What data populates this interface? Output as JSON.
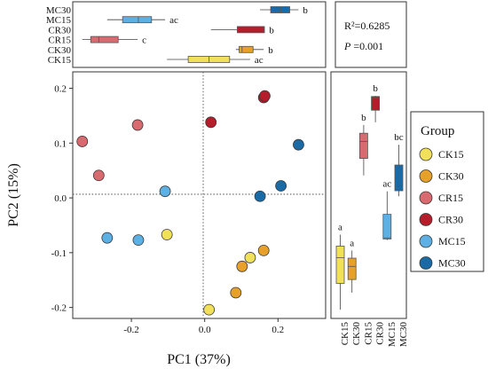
{
  "colors": {
    "CK15": "#f1e05a",
    "CK30": "#e7a02a",
    "CR15": "#d96a6f",
    "CR30": "#b51d2a",
    "MC15": "#5cb0e4",
    "MC30": "#1a6aa6"
  },
  "chart_data": [
    {
      "type": "scatter",
      "xlabel": "PC1 (37%)",
      "ylabel": "PC2 (15%)",
      "xlim": [
        -0.36,
        0.33
      ],
      "ylim": [
        -0.22,
        0.23
      ],
      "xticks": [
        -0.2,
        0.0,
        0.2
      ],
      "xtick_labels": [
        "-0.2",
        "0.0",
        "0.2"
      ],
      "yticks": [
        -0.2,
        -0.1,
        0.0,
        0.1,
        0.2
      ],
      "ytick_labels": [
        "-0.2",
        "-0.1",
        "0.0",
        "0.1",
        "0.2"
      ],
      "reference_lines": {
        "x": 0,
        "y": 0
      },
      "grid": false,
      "series": [
        {
          "name": "CK15",
          "points": [
            [
              0.012,
              -0.204
            ],
            [
              -0.103,
              -0.067
            ],
            [
              0.124,
              -0.109
            ]
          ]
        },
        {
          "name": "CK30",
          "points": [
            [
              0.085,
              -0.173
            ],
            [
              0.102,
              -0.125
            ],
            [
              0.161,
              -0.096
            ]
          ]
        },
        {
          "name": "CR15",
          "points": [
            [
              -0.334,
              0.103
            ],
            [
              -0.289,
              0.041
            ],
            [
              -0.183,
              0.133
            ]
          ]
        },
        {
          "name": "CR30",
          "points": [
            [
              0.017,
              0.138
            ],
            [
              0.161,
              0.183
            ],
            [
              0.164,
              0.186
            ]
          ]
        },
        {
          "name": "MC15",
          "points": [
            [
              -0.266,
              -0.073
            ],
            [
              -0.181,
              -0.077
            ],
            [
              -0.108,
              0.012
            ]
          ]
        },
        {
          "name": "MC30",
          "points": [
            [
              0.151,
              0.003
            ],
            [
              0.208,
              0.022
            ],
            [
              0.256,
              0.097
            ]
          ]
        }
      ],
      "stats": {
        "r2_label": "R²=0.6285",
        "p_symbol": "P",
        "p_value": " =0.001"
      },
      "legend": {
        "title": "Group",
        "placement": "right",
        "entries": [
          "CK15",
          "CK30",
          "CR15",
          "CR30",
          "MC15",
          "MC30"
        ]
      }
    },
    {
      "type": "box",
      "orientation": "horizontal",
      "axis": "PC1",
      "categories": [
        "MC30",
        "MC15",
        "CR30",
        "CR15",
        "CK30",
        "CK15"
      ],
      "boxes": [
        {
          "name": "MC30",
          "min": 0.151,
          "q1": 0.18,
          "median": 0.208,
          "q3": 0.232,
          "max": 0.256,
          "letter": "b"
        },
        {
          "name": "MC15",
          "min": -0.266,
          "q1": -0.224,
          "median": -0.181,
          "q3": -0.145,
          "max": -0.108,
          "letter": "ac"
        },
        {
          "name": "CR30",
          "min": 0.017,
          "q1": 0.089,
          "median": 0.161,
          "q3": 0.163,
          "max": 0.164,
          "letter": "b"
        },
        {
          "name": "CR15",
          "min": -0.334,
          "q1": -0.311,
          "median": -0.289,
          "q3": -0.236,
          "max": -0.183,
          "letter": "c"
        },
        {
          "name": "CK30",
          "min": 0.085,
          "q1": 0.094,
          "median": 0.102,
          "q3": 0.132,
          "max": 0.161,
          "letter": "b"
        },
        {
          "name": "CK15",
          "min": -0.103,
          "q1": -0.045,
          "median": 0.012,
          "q3": 0.068,
          "max": 0.124,
          "letter": "ac"
        }
      ]
    },
    {
      "type": "box",
      "orientation": "vertical",
      "axis": "PC2",
      "categories": [
        "CK15",
        "CK30",
        "CR15",
        "CR30",
        "MC15",
        "MC30"
      ],
      "boxes": [
        {
          "name": "CK15",
          "min": -0.204,
          "q1": -0.156,
          "median": -0.109,
          "q3": -0.088,
          "max": -0.067,
          "letter": "a"
        },
        {
          "name": "CK30",
          "min": -0.173,
          "q1": -0.149,
          "median": -0.125,
          "q3": -0.11,
          "max": -0.096,
          "letter": "a"
        },
        {
          "name": "CR15",
          "min": 0.041,
          "q1": 0.072,
          "median": 0.103,
          "q3": 0.118,
          "max": 0.133,
          "letter": "b"
        },
        {
          "name": "CR30",
          "min": 0.138,
          "q1": 0.16,
          "median": 0.183,
          "q3": 0.185,
          "max": 0.186,
          "letter": "b"
        },
        {
          "name": "MC15",
          "min": -0.077,
          "q1": -0.075,
          "median": -0.073,
          "q3": -0.03,
          "max": 0.012,
          "letter": "ac"
        },
        {
          "name": "MC30",
          "min": 0.003,
          "q1": 0.013,
          "median": 0.022,
          "q3": 0.06,
          "max": 0.097,
          "letter": "bc"
        }
      ]
    }
  ]
}
